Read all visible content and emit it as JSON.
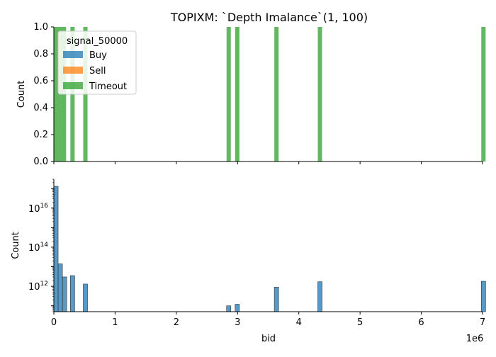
{
  "title": "TOPIXM: `Depth Imalance`(1, 100)",
  "colors": {
    "Buy": "#1f77b4",
    "Sell": "#ff7f0e",
    "Timeout": "#2ca02c"
  },
  "chart_data": [
    {
      "type": "bar",
      "panel": "top",
      "title": "TOPIXM: `Depth Imalance`(1, 100)",
      "xlabel": "",
      "ylabel": "Count",
      "ylim": [
        0,
        1.0
      ],
      "xlim": [
        0,
        7000000
      ],
      "yticks": [
        "0.0",
        "0.2",
        "0.4",
        "0.6",
        "0.8",
        "1.0"
      ],
      "grid": false,
      "legend": {
        "title": "signal_50000",
        "placement": "top-left",
        "entries": [
          "Buy",
          "Sell",
          "Timeout"
        ]
      },
      "series": [
        {
          "name": "Timeout",
          "bins": [
            {
              "x0": 0,
              "x1": 200000,
              "value": 1
            },
            {
              "x0": 270000,
              "x1": 340000,
              "value": 1
            },
            {
              "x0": 480000,
              "x1": 550000,
              "value": 1
            },
            {
              "x0": 2820000,
              "x1": 2890000,
              "value": 1
            },
            {
              "x0": 2960000,
              "x1": 3030000,
              "value": 1
            },
            {
              "x0": 3600000,
              "x1": 3670000,
              "value": 1
            },
            {
              "x0": 4310000,
              "x1": 4380000,
              "value": 1
            },
            {
              "x0": 6980000,
              "x1": 7050000,
              "value": 1
            }
          ]
        }
      ]
    },
    {
      "type": "bar",
      "panel": "bottom",
      "xlabel": "bid",
      "ylabel": "Count",
      "yscale": "log",
      "ylim": [
        50000000000,
        300000000000000000
      ],
      "xlim": [
        0,
        7000000
      ],
      "x_offset_label": "1e6",
      "xticks": [
        "0",
        "1",
        "2",
        "3",
        "4",
        "5",
        "6",
        "7"
      ],
      "yticks": [
        {
          "base": "10",
          "exp": "12"
        },
        {
          "base": "10",
          "exp": "14"
        },
        {
          "base": "10",
          "exp": "16"
        }
      ],
      "grid": false,
      "series": [
        {
          "name": "Buy",
          "bins": [
            {
              "x0": 0,
              "x1": 70000,
              "value": 130000000000000000
            },
            {
              "x0": 70000,
              "x1": 140000,
              "value": 14000000000000
            },
            {
              "x0": 140000,
              "x1": 210000,
              "value": 3000000000000
            },
            {
              "x0": 270000,
              "x1": 340000,
              "value": 3500000000000
            },
            {
              "x0": 480000,
              "x1": 550000,
              "value": 1300000000000
            },
            {
              "x0": 2820000,
              "x1": 2890000,
              "value": 100000000000
            },
            {
              "x0": 2960000,
              "x1": 3030000,
              "value": 120000000000
            },
            {
              "x0": 3600000,
              "x1": 3670000,
              "value": 900000000000
            },
            {
              "x0": 4310000,
              "x1": 4380000,
              "value": 1700000000000
            },
            {
              "x0": 6980000,
              "x1": 7050000,
              "value": 1800000000000
            }
          ]
        }
      ]
    }
  ]
}
